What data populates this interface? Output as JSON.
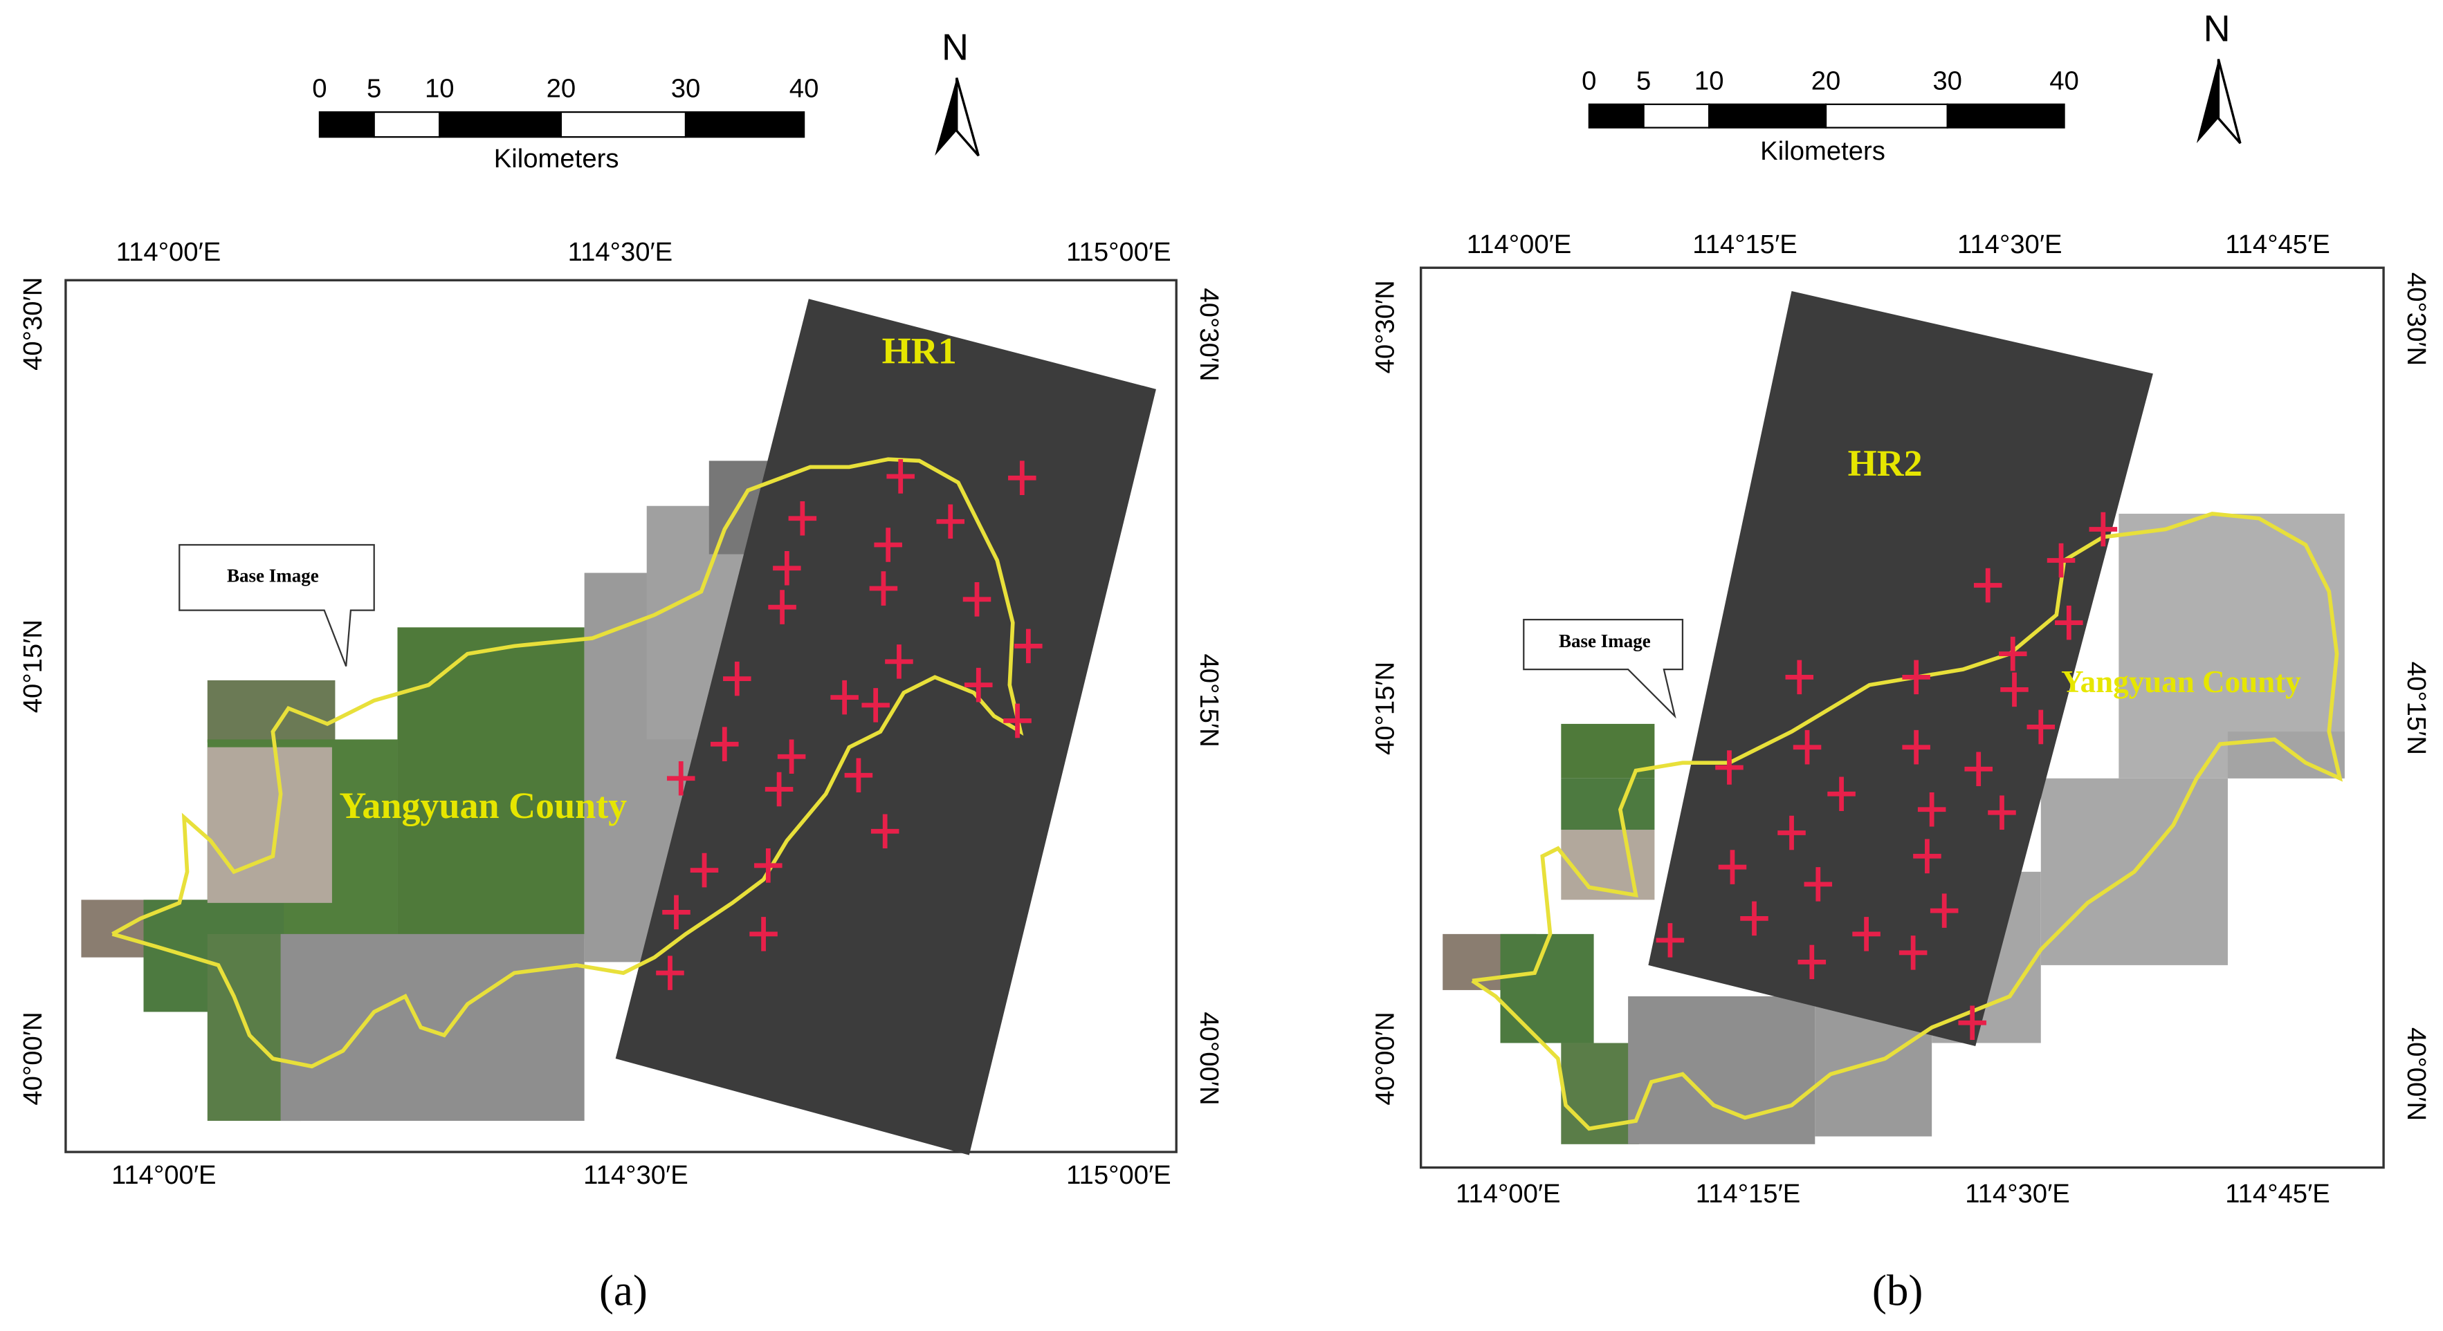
{
  "panels": [
    {
      "label": "(a)",
      "scale_bar": {
        "labels": [
          "0",
          "5",
          "10",
          "20",
          "30",
          "40"
        ],
        "unit": "Kilometers"
      },
      "north": "N",
      "image_label": "HR1",
      "callout": "Base Image",
      "region": "Yangyuan County",
      "axes": {
        "top": [
          "114°00′E",
          "114°30′E",
          "115°00′E"
        ],
        "bottom": [
          "114°00′E",
          "114°30′E",
          "115°00′E"
        ],
        "left": [
          "40°30′N",
          "40°15′N",
          "40°00′N"
        ],
        "right": [
          "40°30′N",
          "40°15′N",
          "40°00′N"
        ]
      }
    },
    {
      "label": "(b)",
      "scale_bar": {
        "labels": [
          "0",
          "5",
          "10",
          "20",
          "30",
          "40"
        ],
        "unit": "Kilometers"
      },
      "north": "N",
      "image_label": "HR2",
      "callout": "Base Image",
      "region": "Yangyuan County",
      "axes": {
        "top": [
          "114°00′E",
          "114°15′E",
          "114°30′E",
          "114°45′E"
        ],
        "bottom": [
          "114°00′E",
          "114°15′E",
          "114°30′E",
          "114°45′E"
        ],
        "left": [
          "40°30′N",
          "40°15′N",
          "40°00′N"
        ],
        "right": [
          "40°30′N",
          "40°15′N",
          "40°00′N"
        ]
      }
    }
  ]
}
